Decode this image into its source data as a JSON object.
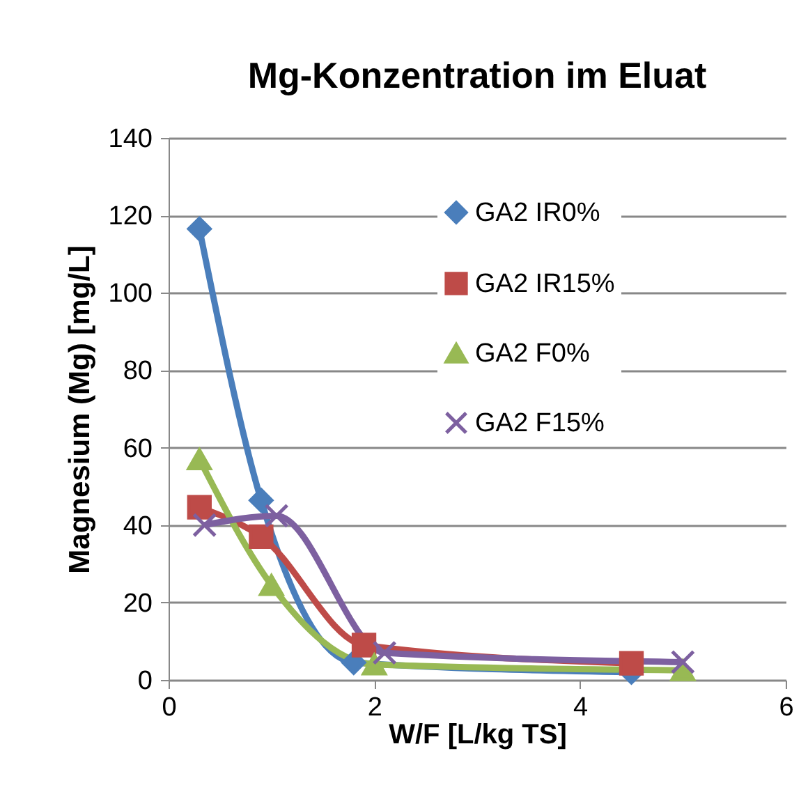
{
  "chart_data": {
    "type": "line",
    "title": "Mg-Konzentration im Eluat",
    "xlabel": "W/F [L/kg TS]",
    "ylabel": "Magnesium (Mg) [mg/L]",
    "xlim": [
      0,
      6
    ],
    "xticks": [
      0,
      2,
      4,
      6
    ],
    "ylim": [
      0,
      140
    ],
    "yticks": [
      0,
      20,
      40,
      60,
      80,
      100,
      120,
      140
    ],
    "grid": "y",
    "legend": "top right",
    "line_style": "solid",
    "series": [
      {
        "name": "GA2 IR0%",
        "color": "#4a7ebb",
        "marker": "diamond",
        "x": [
          0.3,
          0.9,
          1.8,
          4.5
        ],
        "values": [
          116.5,
          46.4,
          4.5,
          2
        ]
      },
      {
        "name": "GA2 IR15%",
        "color": "#be4b48",
        "marker": "square",
        "x": [
          0.3,
          0.9,
          1.9,
          4.5
        ],
        "values": [
          44.6,
          37,
          9,
          4.3
        ]
      },
      {
        "name": "GA2 F0%",
        "color": "#98b954",
        "marker": "triangle",
        "x": [
          0.3,
          1.0,
          2.0,
          5.0
        ],
        "values": [
          57,
          24.5,
          4,
          2.5
        ]
      },
      {
        "name": "GA2 F15%",
        "color": "#7d60a0",
        "marker": "cross",
        "x": [
          0.35,
          1.05,
          2.1,
          5.0
        ],
        "values": [
          40,
          42.4,
          7,
          4.6
        ]
      }
    ]
  }
}
